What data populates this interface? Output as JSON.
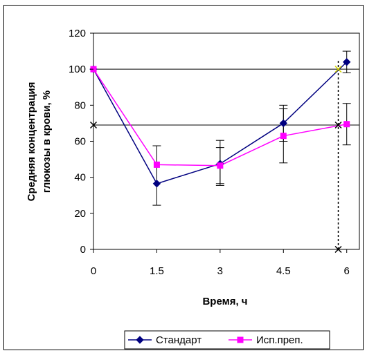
{
  "chart_data": {
    "type": "line",
    "x": [
      0,
      1.5,
      3,
      4.5,
      6
    ],
    "x_tick_labels": [
      "0",
      "1.5",
      "3",
      "4.5",
      "6"
    ],
    "ylim": [
      0,
      120
    ],
    "y_ticks": [
      0,
      20,
      40,
      60,
      80,
      100,
      120
    ],
    "xlabel": "Время, ч",
    "ylabel": [
      "Средняя концентрация",
      "глюкозы в крови, %"
    ],
    "grid": false,
    "legend_position": "bottom",
    "series": [
      {
        "name": "Стандарт",
        "color": "#000080",
        "marker": "diamond",
        "values": [
          100,
          36.5,
          47.5,
          70,
          104
        ],
        "err_low": [
          0,
          12,
          12,
          10,
          6
        ],
        "err_high": [
          0,
          21,
          13,
          10,
          6
        ]
      },
      {
        "name": "Исп.преп.",
        "color": "#ff00ff",
        "marker": "square",
        "values": [
          100,
          47,
          46.5,
          63,
          69.5
        ],
        "err_low": [
          0,
          0,
          10,
          15,
          11.5
        ],
        "err_high": [
          0,
          0,
          10,
          15,
          11.5
        ]
      }
    ],
    "reference_lines": [
      {
        "type": "horizontal",
        "y": 100,
        "color": "#000000",
        "style": "solid"
      },
      {
        "type": "horizontal",
        "y": 69,
        "color": "#000000",
        "style": "solid"
      },
      {
        "type": "vertical",
        "x": 5.8,
        "color": "#000000",
        "style": "dotted"
      }
    ],
    "reference_markers": [
      {
        "x": 5.8,
        "y": 100,
        "symbol": "x",
        "color": "#d4d400"
      },
      {
        "x": 5.8,
        "y": 69,
        "symbol": "x",
        "color": "#000000"
      },
      {
        "x": 5.8,
        "y": 0,
        "symbol": "x",
        "color": "#000000"
      },
      {
        "x": 0,
        "y": 69,
        "symbol": "x",
        "color": "#000000"
      }
    ]
  }
}
